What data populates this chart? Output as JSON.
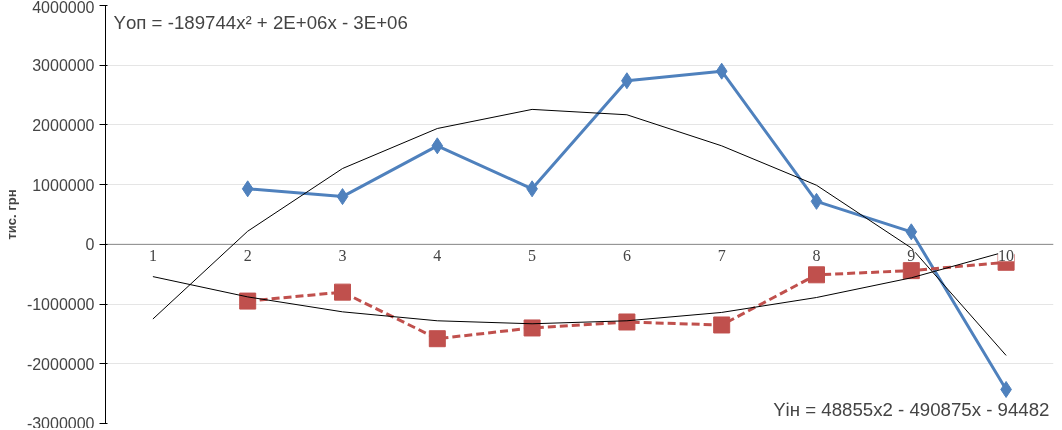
{
  "chart_data": {
    "type": "line",
    "ylabel": "тис. грн",
    "categories": [
      "1",
      "2",
      "3",
      "4",
      "5",
      "6",
      "7",
      "8",
      "9",
      "10"
    ],
    "ylim": [
      -3000000,
      4000000
    ],
    "yticks": [
      -3000000,
      -2000000,
      -1000000,
      0,
      1000000,
      2000000,
      3000000,
      4000000
    ],
    "grid": "y",
    "series": [
      {
        "color": "#4f81bd",
        "marker": "diamond",
        "line_style": "solid",
        "values": [
          null,
          930000,
          800000,
          1650000,
          930000,
          2740000,
          2900000,
          720000,
          210000,
          -2430000
        ]
      },
      {
        "color": "#c0504d",
        "marker": "square",
        "line_style": "dashed",
        "values": [
          null,
          -950000,
          -800000,
          -1580000,
          -1400000,
          -1300000,
          -1350000,
          -510000,
          -440000,
          -300000
        ]
      },
      {
        "type": "line",
        "color": "#000000",
        "marker": "none",
        "line_style": "solid",
        "values": [
          -1250000,
          220000,
          1270000,
          1940000,
          2260000,
          2170000,
          1650000,
          990000,
          -60000,
          -1860000
        ]
      },
      {
        "type": "line",
        "color": "#000000",
        "marker": "none",
        "line_style": "solid",
        "values": [
          -540000,
          -880000,
          -1130000,
          -1280000,
          -1330000,
          -1280000,
          -1140000,
          -890000,
          -560000,
          -120000
        ]
      }
    ],
    "annotations": [
      {
        "text": "Yоп = -189744x² + 2E+06x - 3E+06"
      },
      {
        "text": "Yін = 48855x2 - 490875x - 94482"
      }
    ]
  }
}
